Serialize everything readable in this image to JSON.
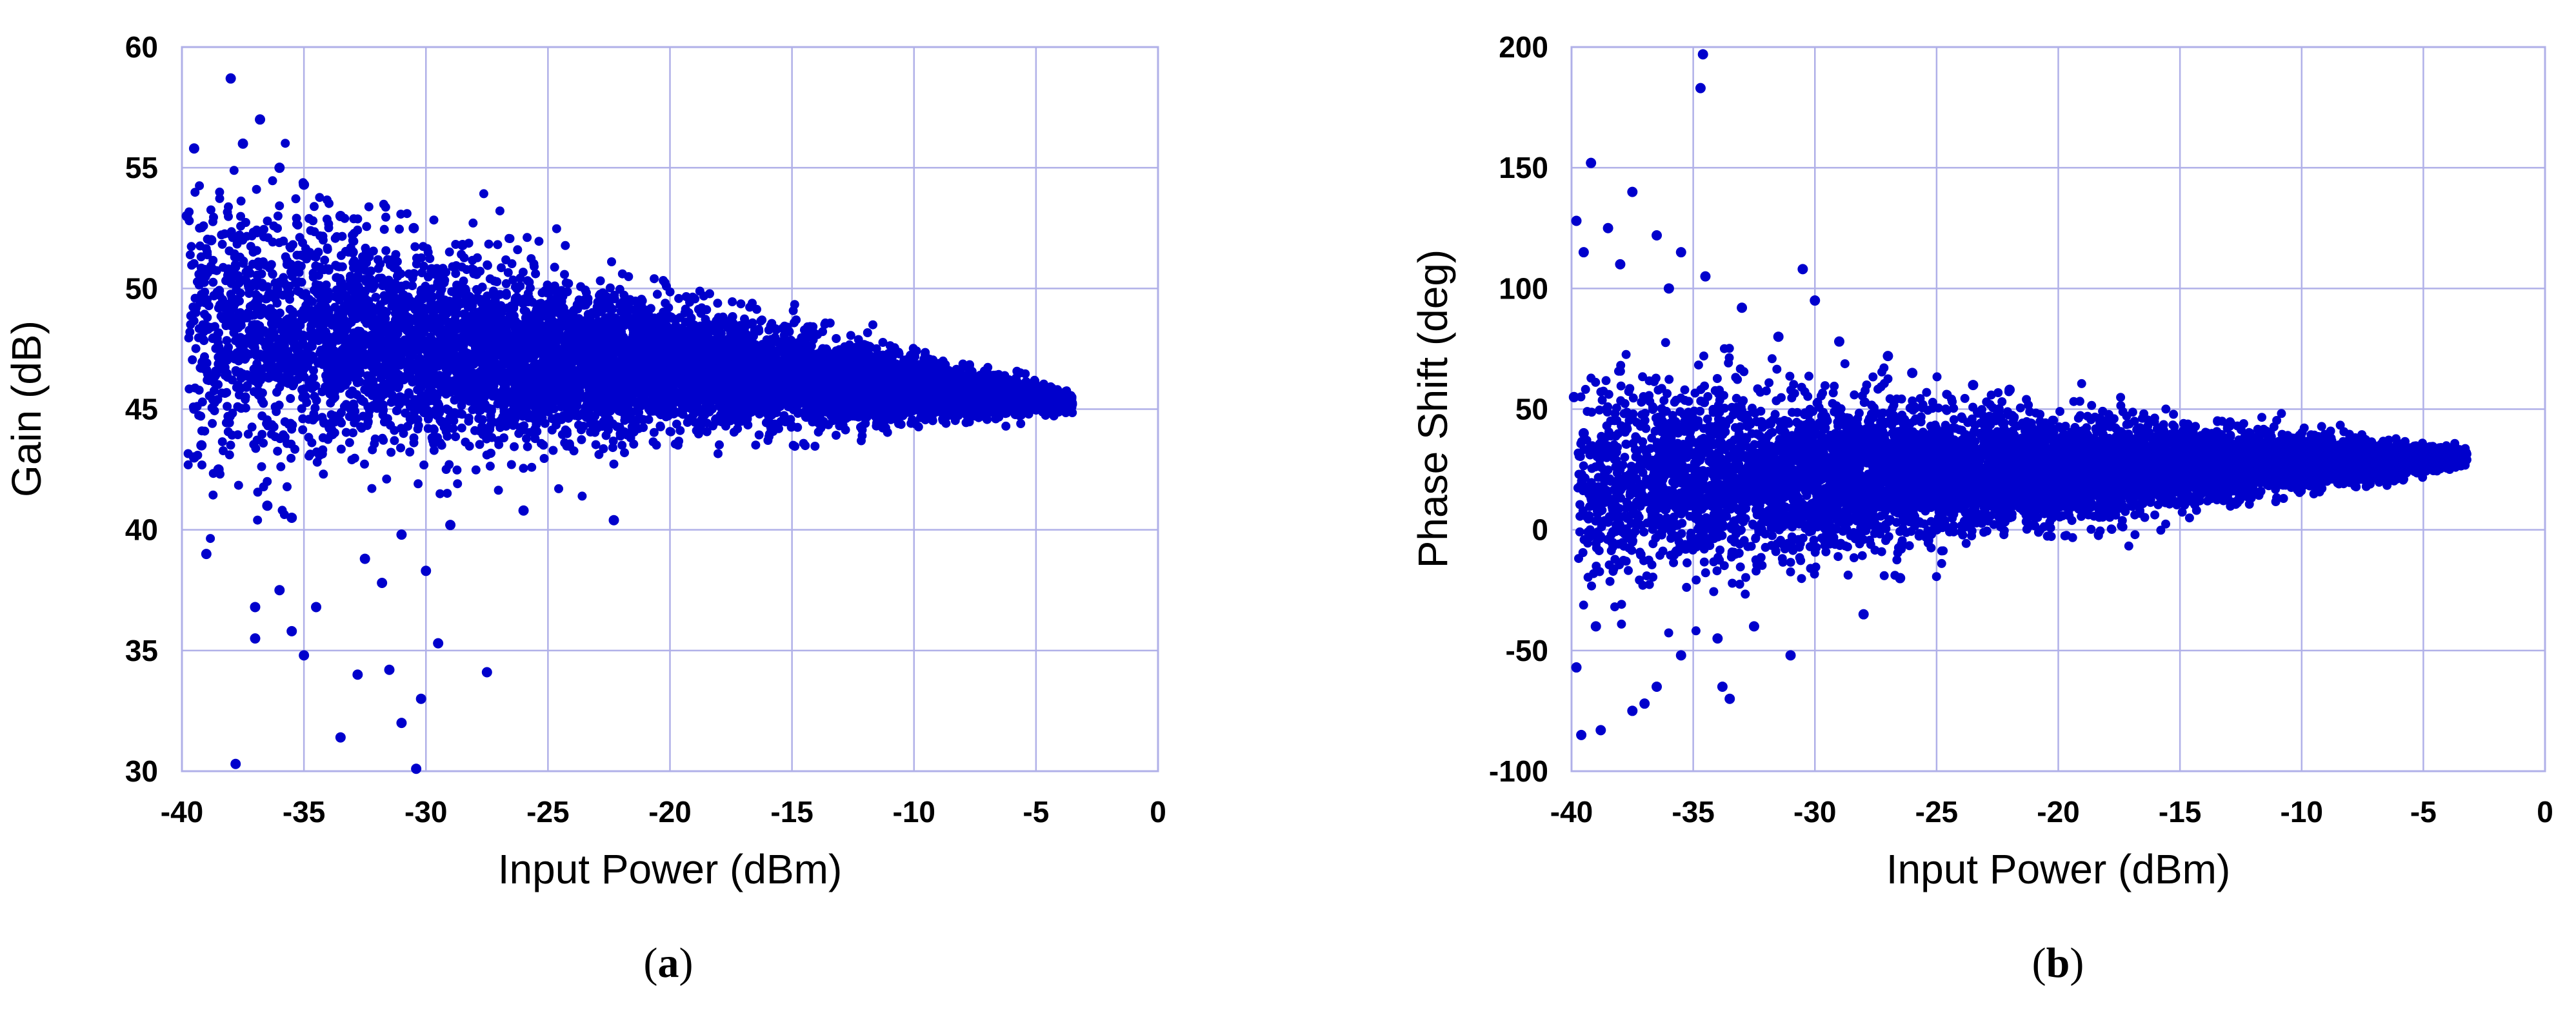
{
  "chart_data": [
    {
      "type": "scatter",
      "caption": {
        "open": "(",
        "letter": "a",
        "close": ")"
      },
      "xlabel": "Input Power (dBm)",
      "ylabel": "Gain (dB)",
      "xlim": [
        -40,
        0
      ],
      "ylim": [
        30,
        60
      ],
      "xticks": [
        -40,
        -35,
        -30,
        -25,
        -20,
        -15,
        -10,
        -5,
        0
      ],
      "yticks": [
        30,
        35,
        40,
        45,
        50,
        55,
        60
      ],
      "grid": true,
      "marker_color": "#0000CC",
      "grid_color": "#B0B0E8",
      "series": [
        {
          "convergence": {
            "x": -3.5,
            "y": 45.3
          },
          "outliers": [
            [
              -38.0,
              58.7
            ],
            [
              -36.8,
              57.0
            ],
            [
              -37.5,
              56.0
            ],
            [
              -39.5,
              55.8
            ],
            [
              -36.0,
              55.0
            ],
            [
              -35.0,
              54.3
            ],
            [
              -33.5,
              53.0
            ],
            [
              -37.8,
              30.3
            ],
            [
              -30.4,
              30.1
            ],
            [
              -33.5,
              31.4
            ],
            [
              -30.2,
              33.0
            ],
            [
              -31.0,
              32.0
            ],
            [
              -27.5,
              34.1
            ],
            [
              -35.0,
              34.8
            ],
            [
              -29.5,
              35.3
            ],
            [
              -37.0,
              35.5
            ],
            [
              -35.5,
              35.8
            ],
            [
              -36.0,
              37.5
            ],
            [
              -31.8,
              37.8
            ],
            [
              -34.5,
              36.8
            ],
            [
              -39.0,
              39.0
            ],
            [
              -32.5,
              38.8
            ],
            [
              -37.0,
              36.8
            ],
            [
              -30.0,
              38.3
            ],
            [
              -22.3,
              40.4
            ],
            [
              -39.5,
              43.0
            ],
            [
              -39.2,
              43.5
            ],
            [
              -38.5,
              42.5
            ],
            [
              -36.5,
              41.0
            ],
            [
              -35.5,
              40.5
            ],
            [
              -31.0,
              39.8
            ],
            [
              -29.0,
              40.2
            ],
            [
              -26.0,
              40.8
            ],
            [
              -39.8,
              53.0
            ],
            [
              -38.8,
              52.0
            ],
            [
              -33.0,
              51.5
            ],
            [
              -30.5,
              52.5
            ],
            [
              -28.5,
              51.8
            ],
            [
              -32.8,
              34.0
            ],
            [
              -31.5,
              34.2
            ]
          ]
        }
      ]
    },
    {
      "type": "scatter",
      "caption": {
        "open": "(",
        "letter": "b",
        "close": ")"
      },
      "xlabel": "Input Power (dBm)",
      "ylabel": "Phase Shift (deg)",
      "xlim": [
        -40,
        0
      ],
      "ylim": [
        -100,
        200
      ],
      "xticks": [
        -40,
        -35,
        -30,
        -25,
        -20,
        -15,
        -10,
        -5,
        0
      ],
      "yticks": [
        -100,
        -50,
        0,
        50,
        100,
        150,
        200
      ],
      "grid": true,
      "marker_color": "#0000CC",
      "grid_color": "#B0B0E8",
      "series": [
        {
          "convergence": {
            "x": -3.2,
            "y": 30
          },
          "outliers": [
            [
              -34.6,
              197
            ],
            [
              -34.7,
              183
            ],
            [
              -39.2,
              152
            ],
            [
              -39.8,
              128
            ],
            [
              -37.5,
              140
            ],
            [
              -38.5,
              125
            ],
            [
              -36.5,
              122
            ],
            [
              -35.5,
              115
            ],
            [
              -34.5,
              105
            ],
            [
              -30.5,
              108
            ],
            [
              -30.0,
              95
            ],
            [
              -33.0,
              92
            ],
            [
              -39.5,
              115
            ],
            [
              -38.0,
              110
            ],
            [
              -36.0,
              100
            ],
            [
              -39.6,
              -85
            ],
            [
              -38.8,
              -83
            ],
            [
              -37.5,
              -75
            ],
            [
              -37.0,
              -72
            ],
            [
              -36.5,
              -65
            ],
            [
              -33.5,
              -70
            ],
            [
              -33.8,
              -65
            ],
            [
              -31.0,
              -52
            ],
            [
              -35.5,
              -52
            ],
            [
              -34.0,
              -45
            ],
            [
              -39.8,
              -57
            ],
            [
              -39.0,
              -40
            ],
            [
              -32.5,
              -40
            ],
            [
              -28.0,
              -35
            ],
            [
              -26.5,
              -20
            ],
            [
              -39.9,
              55
            ],
            [
              -39.5,
              40
            ],
            [
              -27.0,
              72
            ],
            [
              -26.0,
              65
            ],
            [
              -23.5,
              60
            ],
            [
              -22.0,
              58
            ],
            [
              -29.0,
              78
            ],
            [
              -31.5,
              80
            ]
          ]
        }
      ]
    }
  ]
}
